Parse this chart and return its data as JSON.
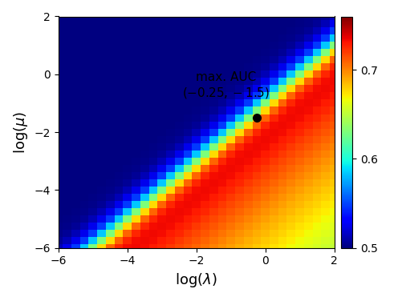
{
  "x_range": [
    -6,
    2
  ],
  "y_range": [
    -6,
    2
  ],
  "n_points": 33,
  "max_auc_point": [
    -0.25,
    -1.5
  ],
  "annotation_text_line1": "max. AUC",
  "annotation_text_line2": "$(-0.25, -1.5)$",
  "xlabel": "$\\log(\\lambda)$",
  "ylabel": "$\\log(\\mu)$",
  "vmin": 0.5,
  "vmax": 0.76,
  "colorbar_ticks": [
    0.5,
    0.6,
    0.7
  ],
  "colormap": "jet",
  "annotation_fontsize": 11,
  "axis_label_fontsize": 13,
  "tick_fontsize": 10,
  "figsize": [
    5.02,
    3.76
  ],
  "dpi": 100
}
